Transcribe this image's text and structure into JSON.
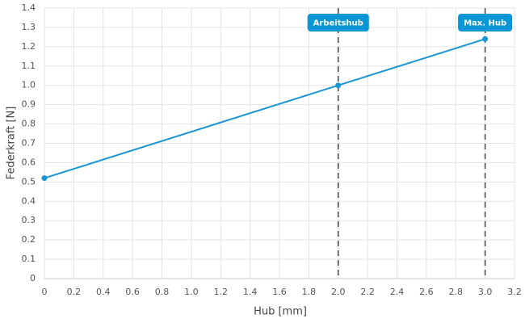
{
  "chart_data": {
    "type": "line",
    "x_label": "Hub [mm]",
    "y_label": "Federkraft [N]",
    "x": [
      0,
      2,
      3
    ],
    "values": [
      0.52,
      1.0,
      1.24
    ],
    "color": "#1a96d4",
    "xlim": [
      0,
      3.2
    ],
    "xticks": [
      0,
      0.2,
      0.4,
      0.6,
      0.8,
      {
        "value": 1,
        "label": "1.0"
      },
      1.2,
      1.4,
      1.6,
      1.8,
      {
        "value": 2,
        "label": "2.0"
      },
      2.2,
      2.4,
      2.6,
      2.8,
      {
        "value": 3,
        "label": "3.0"
      },
      3.2
    ],
    "ylim": [
      0,
      1.4
    ],
    "yticks": [
      0,
      0.1,
      0.2,
      0.3,
      0.4,
      0.5,
      0.6,
      0.7,
      0.8,
      0.9,
      {
        "value": 1,
        "label": "1.0"
      },
      1.1,
      1.2,
      1.3,
      1.4
    ],
    "grid": true,
    "markers": [
      {
        "x": 2,
        "label": "Arbeitshub"
      },
      {
        "x": 3,
        "label": "Max. Hub"
      }
    ]
  }
}
